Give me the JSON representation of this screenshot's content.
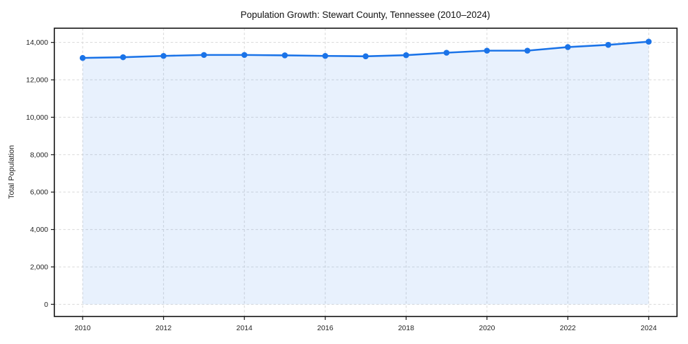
{
  "page": {
    "background_color": "#ffffff"
  },
  "chart_data": {
    "type": "area",
    "title": "Population Growth: Stewart County, Tennessee (2010–2024)",
    "xlabel": "",
    "ylabel": "Total Population",
    "x": [
      2010,
      2011,
      2012,
      2013,
      2014,
      2015,
      2016,
      2017,
      2018,
      2019,
      2020,
      2021,
      2022,
      2023,
      2024
    ],
    "series": [
      {
        "name": "Total Population",
        "values": [
          13170,
          13210,
          13280,
          13330,
          13330,
          13310,
          13280,
          13260,
          13320,
          13450,
          13560,
          13560,
          13750,
          13870,
          14040
        ]
      }
    ],
    "xticks": [
      2010,
      2012,
      2014,
      2016,
      2018,
      2020,
      2022,
      2024
    ],
    "yticks": [
      0,
      2000,
      4000,
      6000,
      8000,
      10000,
      12000,
      14000
    ],
    "xlim": [
      2009.3,
      2024.7
    ],
    "ylim": [
      -650,
      14760
    ],
    "grid": true,
    "grid_style": "dashed",
    "legend_position": "none",
    "line_color": "#1a73e8",
    "marker": "circle",
    "fill_color": "#1a73e8",
    "fill_opacity": 0.1,
    "grid_color": "#d2d2d2",
    "spine_color": "#111111",
    "tick_color": "#111111",
    "baseline_value": 0
  }
}
